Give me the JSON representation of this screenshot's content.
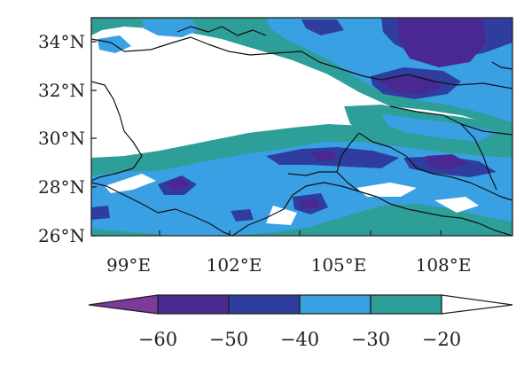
{
  "map": {
    "lat_labels": [
      "34°N",
      "32°N",
      "30°N",
      "28°N",
      "26°N"
    ],
    "lon_labels": [
      "99°E",
      "102°E",
      "105°E",
      "108°E"
    ],
    "colorbar": {
      "labels": [
        "−60",
        "−50",
        "−40",
        "−30",
        "−20"
      ],
      "colors": [
        "#7e3a9b",
        "#4a2891",
        "#2f3e9e",
        "#3aa0e4",
        "#2e9e98",
        "#ffffff"
      ],
      "extend": "both"
    },
    "fill_colors": {
      "teal": "#2e9e98",
      "light_blue": "#3aa0e4",
      "blue": "#2f3e9e",
      "purple": "#4a2891",
      "deep_purple": "#6b2f95",
      "boundary": "#111111"
    }
  }
}
